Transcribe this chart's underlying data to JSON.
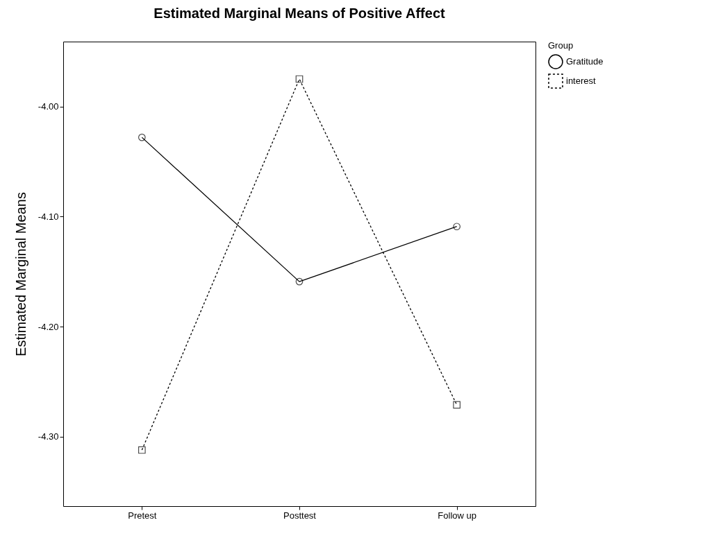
{
  "chart_data": {
    "type": "line",
    "title": "Estimated Marginal Means of Positive Affect",
    "ylabel": "Estimated Marginal Means",
    "legend_title": "Group",
    "categories": [
      "Pretest",
      "Posttest",
      "Follow up"
    ],
    "series": [
      {
        "name": "Gratitude",
        "color": "#000000",
        "values": [
          -4.028,
          -4.159,
          -4.109
        ],
        "marker": "circle",
        "line_style": "solid"
      },
      {
        "name": "interest",
        "color": "#000000",
        "values": [
          -4.312,
          -3.975,
          -4.271
        ],
        "marker": "square",
        "line_style": "dotted"
      }
    ],
    "ylim": [
      -4.363,
      -3.941
    ],
    "yticks": [
      {
        "value": -4.3,
        "label": "-4.30"
      },
      {
        "value": -4.2,
        "label": "-4.20"
      },
      {
        "value": -4.1,
        "label": "-4.10"
      },
      {
        "value": -4.0,
        "label": "-4.00"
      }
    ],
    "grid": false,
    "legend": "top right"
  }
}
